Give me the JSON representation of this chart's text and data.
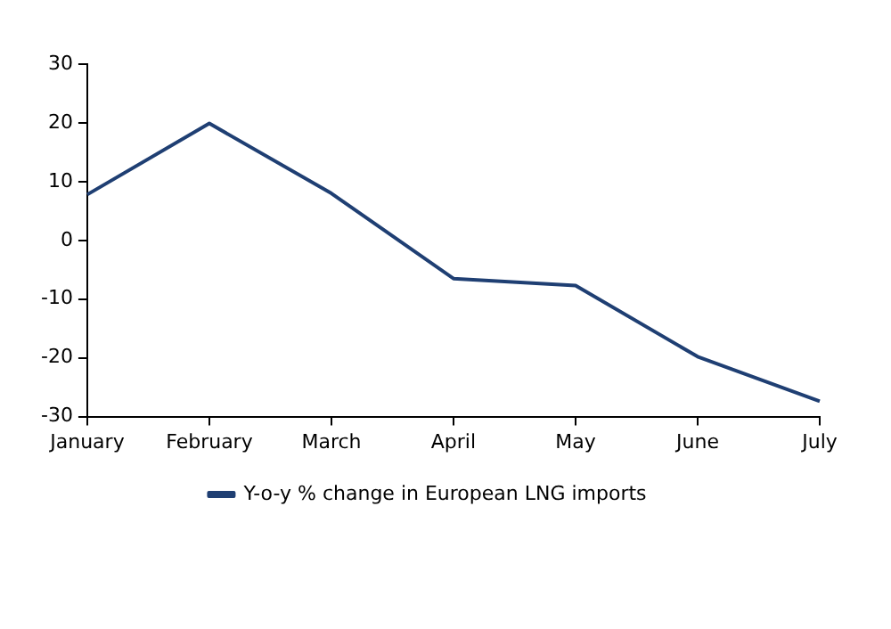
{
  "chart_data": {
    "type": "line",
    "categories": [
      "January",
      "February",
      "March",
      "April",
      "May",
      "June",
      "July"
    ],
    "series": [
      {
        "name": "Y-o-y % change in European LNG imports",
        "color": "#1f3f73",
        "values": [
          7.8,
          19.9,
          8,
          -6.5,
          -7.7,
          -19.8,
          -27.4
        ]
      }
    ],
    "ylim": [
      -30,
      30
    ],
    "yticks": [
      -30,
      -20,
      -10,
      0,
      10,
      20,
      30
    ],
    "grid": false,
    "legend": "bottom",
    "marker": "none"
  }
}
